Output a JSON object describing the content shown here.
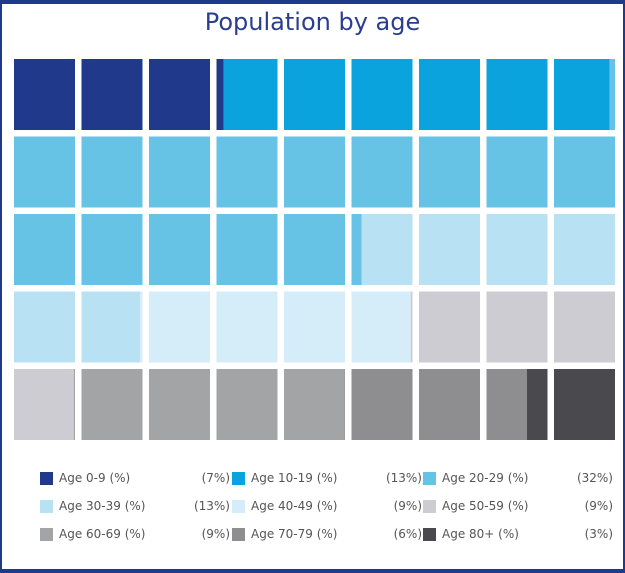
{
  "chart_data": {
    "type": "waffle",
    "title": "Population by age",
    "grid": {
      "rows": 5,
      "cols": 9
    },
    "unit": "%",
    "series": [
      {
        "name": "Age 0-9 (%)",
        "pct_label": "(7%)",
        "value": 7,
        "color": "#21398a"
      },
      {
        "name": "Age 10-19 (%)",
        "pct_label": "(13%)",
        "value": 13,
        "color": "#0aa3de"
      },
      {
        "name": "Age 20-29 (%)",
        "pct_label": "(32%)",
        "value": 32,
        "color": "#66c3e6"
      },
      {
        "name": "Age 30-39 (%)",
        "pct_label": "(13%)",
        "value": 13,
        "color": "#b8e2f4"
      },
      {
        "name": "Age 40-49 (%)",
        "pct_label": "(9%)",
        "value": 9,
        "color": "#d5edf8"
      },
      {
        "name": "Age 50-59 (%)",
        "pct_label": "(9%)",
        "value": 9,
        "color": "#ccccd2"
      },
      {
        "name": "Age 60-69 (%)",
        "pct_label": "(9%)",
        "value": 9,
        "color": "#a2a4a6"
      },
      {
        "name": "Age 70-79 (%)",
        "pct_label": "(6%)",
        "value": 6,
        "color": "#8e8e90"
      },
      {
        "name": "Age 80+ (%)",
        "pct_label": "(3%)",
        "value": 3,
        "color": "#4a4a4e"
      }
    ]
  }
}
